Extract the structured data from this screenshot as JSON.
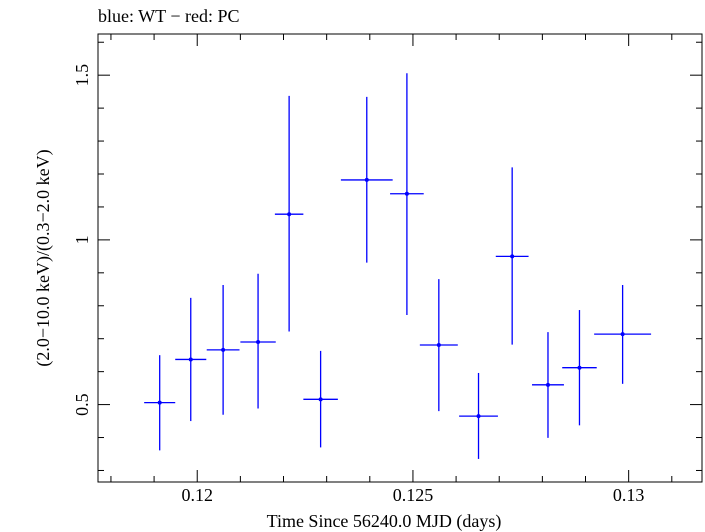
{
  "header": {
    "title": "blue: WT − red: PC"
  },
  "chart_data": {
    "type": "scatter",
    "title": "blue: WT − red: PC",
    "xlabel": "Time Since 56240.0 MJD (days)",
    "ylabel": "(2.0−10.0 keV)/(0.3−2.0 keV)",
    "xlim": [
      0.1177,
      0.1317
    ],
    "ylim": [
      0.265,
      1.625
    ],
    "x_ticks": [
      {
        "value": 0.12,
        "label": "0.12"
      },
      {
        "value": 0.125,
        "label": "0.125"
      },
      {
        "value": 0.13,
        "label": "0.13"
      }
    ],
    "y_ticks": [
      {
        "value": 0.5,
        "label": "0.5"
      },
      {
        "value": 1.0,
        "label": "1"
      },
      {
        "value": 1.5,
        "label": "1.5"
      }
    ],
    "x_minor_step": 0.001,
    "y_minor_step": 0.1,
    "grid": false,
    "series": [
      {
        "name": "WT",
        "color": "#0000ff",
        "points": [
          {
            "x": 0.11913,
            "xerr": 0.00036,
            "y": 0.506,
            "ylo": 0.361,
            "yhi": 0.65
          },
          {
            "x": 0.11985,
            "xerr": 0.00036,
            "y": 0.637,
            "ylo": 0.45,
            "yhi": 0.824
          },
          {
            "x": 0.1206,
            "xerr": 0.00038,
            "y": 0.666,
            "ylo": 0.469,
            "yhi": 0.863
          },
          {
            "x": 0.12141,
            "xerr": 0.00041,
            "y": 0.69,
            "ylo": 0.488,
            "yhi": 0.897
          },
          {
            "x": 0.12213,
            "xerr": 0.00033,
            "y": 1.078,
            "ylo": 0.722,
            "yhi": 1.437
          },
          {
            "x": 0.12286,
            "xerr": 0.0004,
            "y": 0.516,
            "ylo": 0.37,
            "yhi": 0.663
          },
          {
            "x": 0.12393,
            "xerr": 0.0006,
            "y": 1.182,
            "ylo": 0.931,
            "yhi": 1.434
          },
          {
            "x": 0.12486,
            "xerr": 0.00039,
            "y": 1.14,
            "ylo": 0.772,
            "yhi": 1.506
          },
          {
            "x": 0.1256,
            "xerr": 0.00044,
            "y": 0.681,
            "ylo": 0.48,
            "yhi": 0.881
          },
          {
            "x": 0.12652,
            "xerr": 0.00045,
            "y": 0.465,
            "ylo": 0.335,
            "yhi": 0.596
          },
          {
            "x": 0.1273,
            "xerr": 0.00038,
            "y": 0.95,
            "ylo": 0.682,
            "yhi": 1.22
          },
          {
            "x": 0.12813,
            "xerr": 0.00037,
            "y": 0.56,
            "ylo": 0.399,
            "yhi": 0.72
          },
          {
            "x": 0.12886,
            "xerr": 0.0004,
            "y": 0.612,
            "ylo": 0.437,
            "yhi": 0.787
          },
          {
            "x": 0.12986,
            "xerr": 0.00066,
            "y": 0.714,
            "ylo": 0.563,
            "yhi": 0.863
          }
        ]
      }
    ]
  }
}
